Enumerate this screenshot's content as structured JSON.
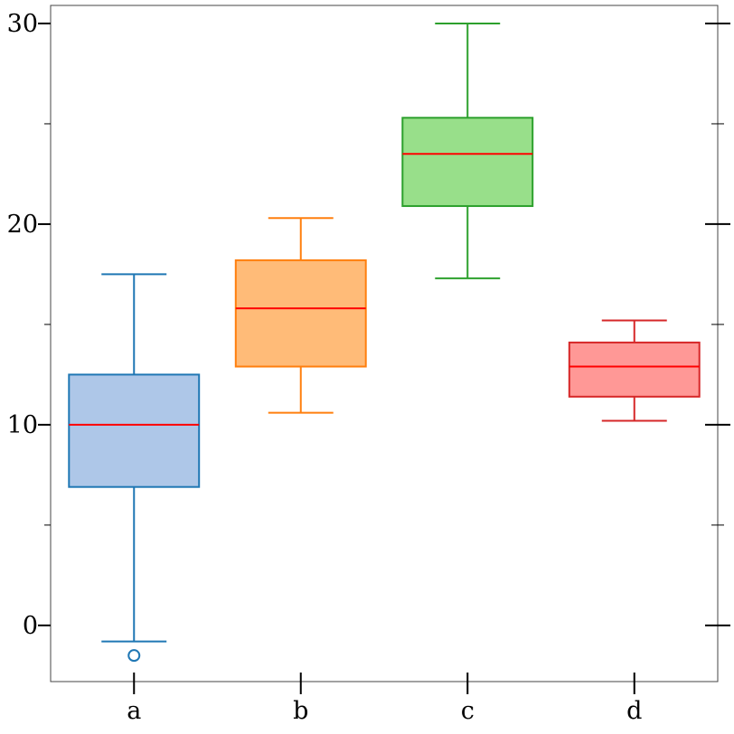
{
  "chart_data": {
    "type": "box",
    "title": "",
    "xlabel": "",
    "ylabel": "",
    "ylim": [
      -2.8,
      30.9
    ],
    "yticks": [
      0,
      10,
      20,
      30
    ],
    "yticks_minor": [
      5,
      15,
      25
    ],
    "grid": false,
    "legend": "none",
    "categories": [
      "a",
      "b",
      "c",
      "d"
    ],
    "boxes": [
      {
        "category": "a",
        "whisker_low": -0.8,
        "q1": 6.9,
        "median": 10.0,
        "q3": 12.5,
        "whisker_high": 17.5,
        "outliers": [
          -1.5
        ],
        "color": "#1f77b4",
        "fill": "#aec7e8",
        "median_color": "#ff0000"
      },
      {
        "category": "b",
        "whisker_low": 10.6,
        "q1": 12.9,
        "median": 15.8,
        "q3": 18.2,
        "whisker_high": 20.3,
        "outliers": [],
        "color": "#ff7f0e",
        "fill": "#ffbb78",
        "median_color": "#ff0000"
      },
      {
        "category": "c",
        "whisker_low": 17.3,
        "q1": 20.9,
        "median": 23.5,
        "q3": 25.3,
        "whisker_high": 30.0,
        "outliers": [],
        "color": "#2ca02c",
        "fill": "#98df8a",
        "median_color": "#ff0000"
      },
      {
        "category": "d",
        "whisker_low": 10.2,
        "q1": 11.4,
        "median": 12.9,
        "q3": 14.1,
        "whisker_high": 15.2,
        "outliers": [],
        "color": "#d62728",
        "fill": "#ff9896",
        "median_color": "#ff0000"
      }
    ]
  }
}
